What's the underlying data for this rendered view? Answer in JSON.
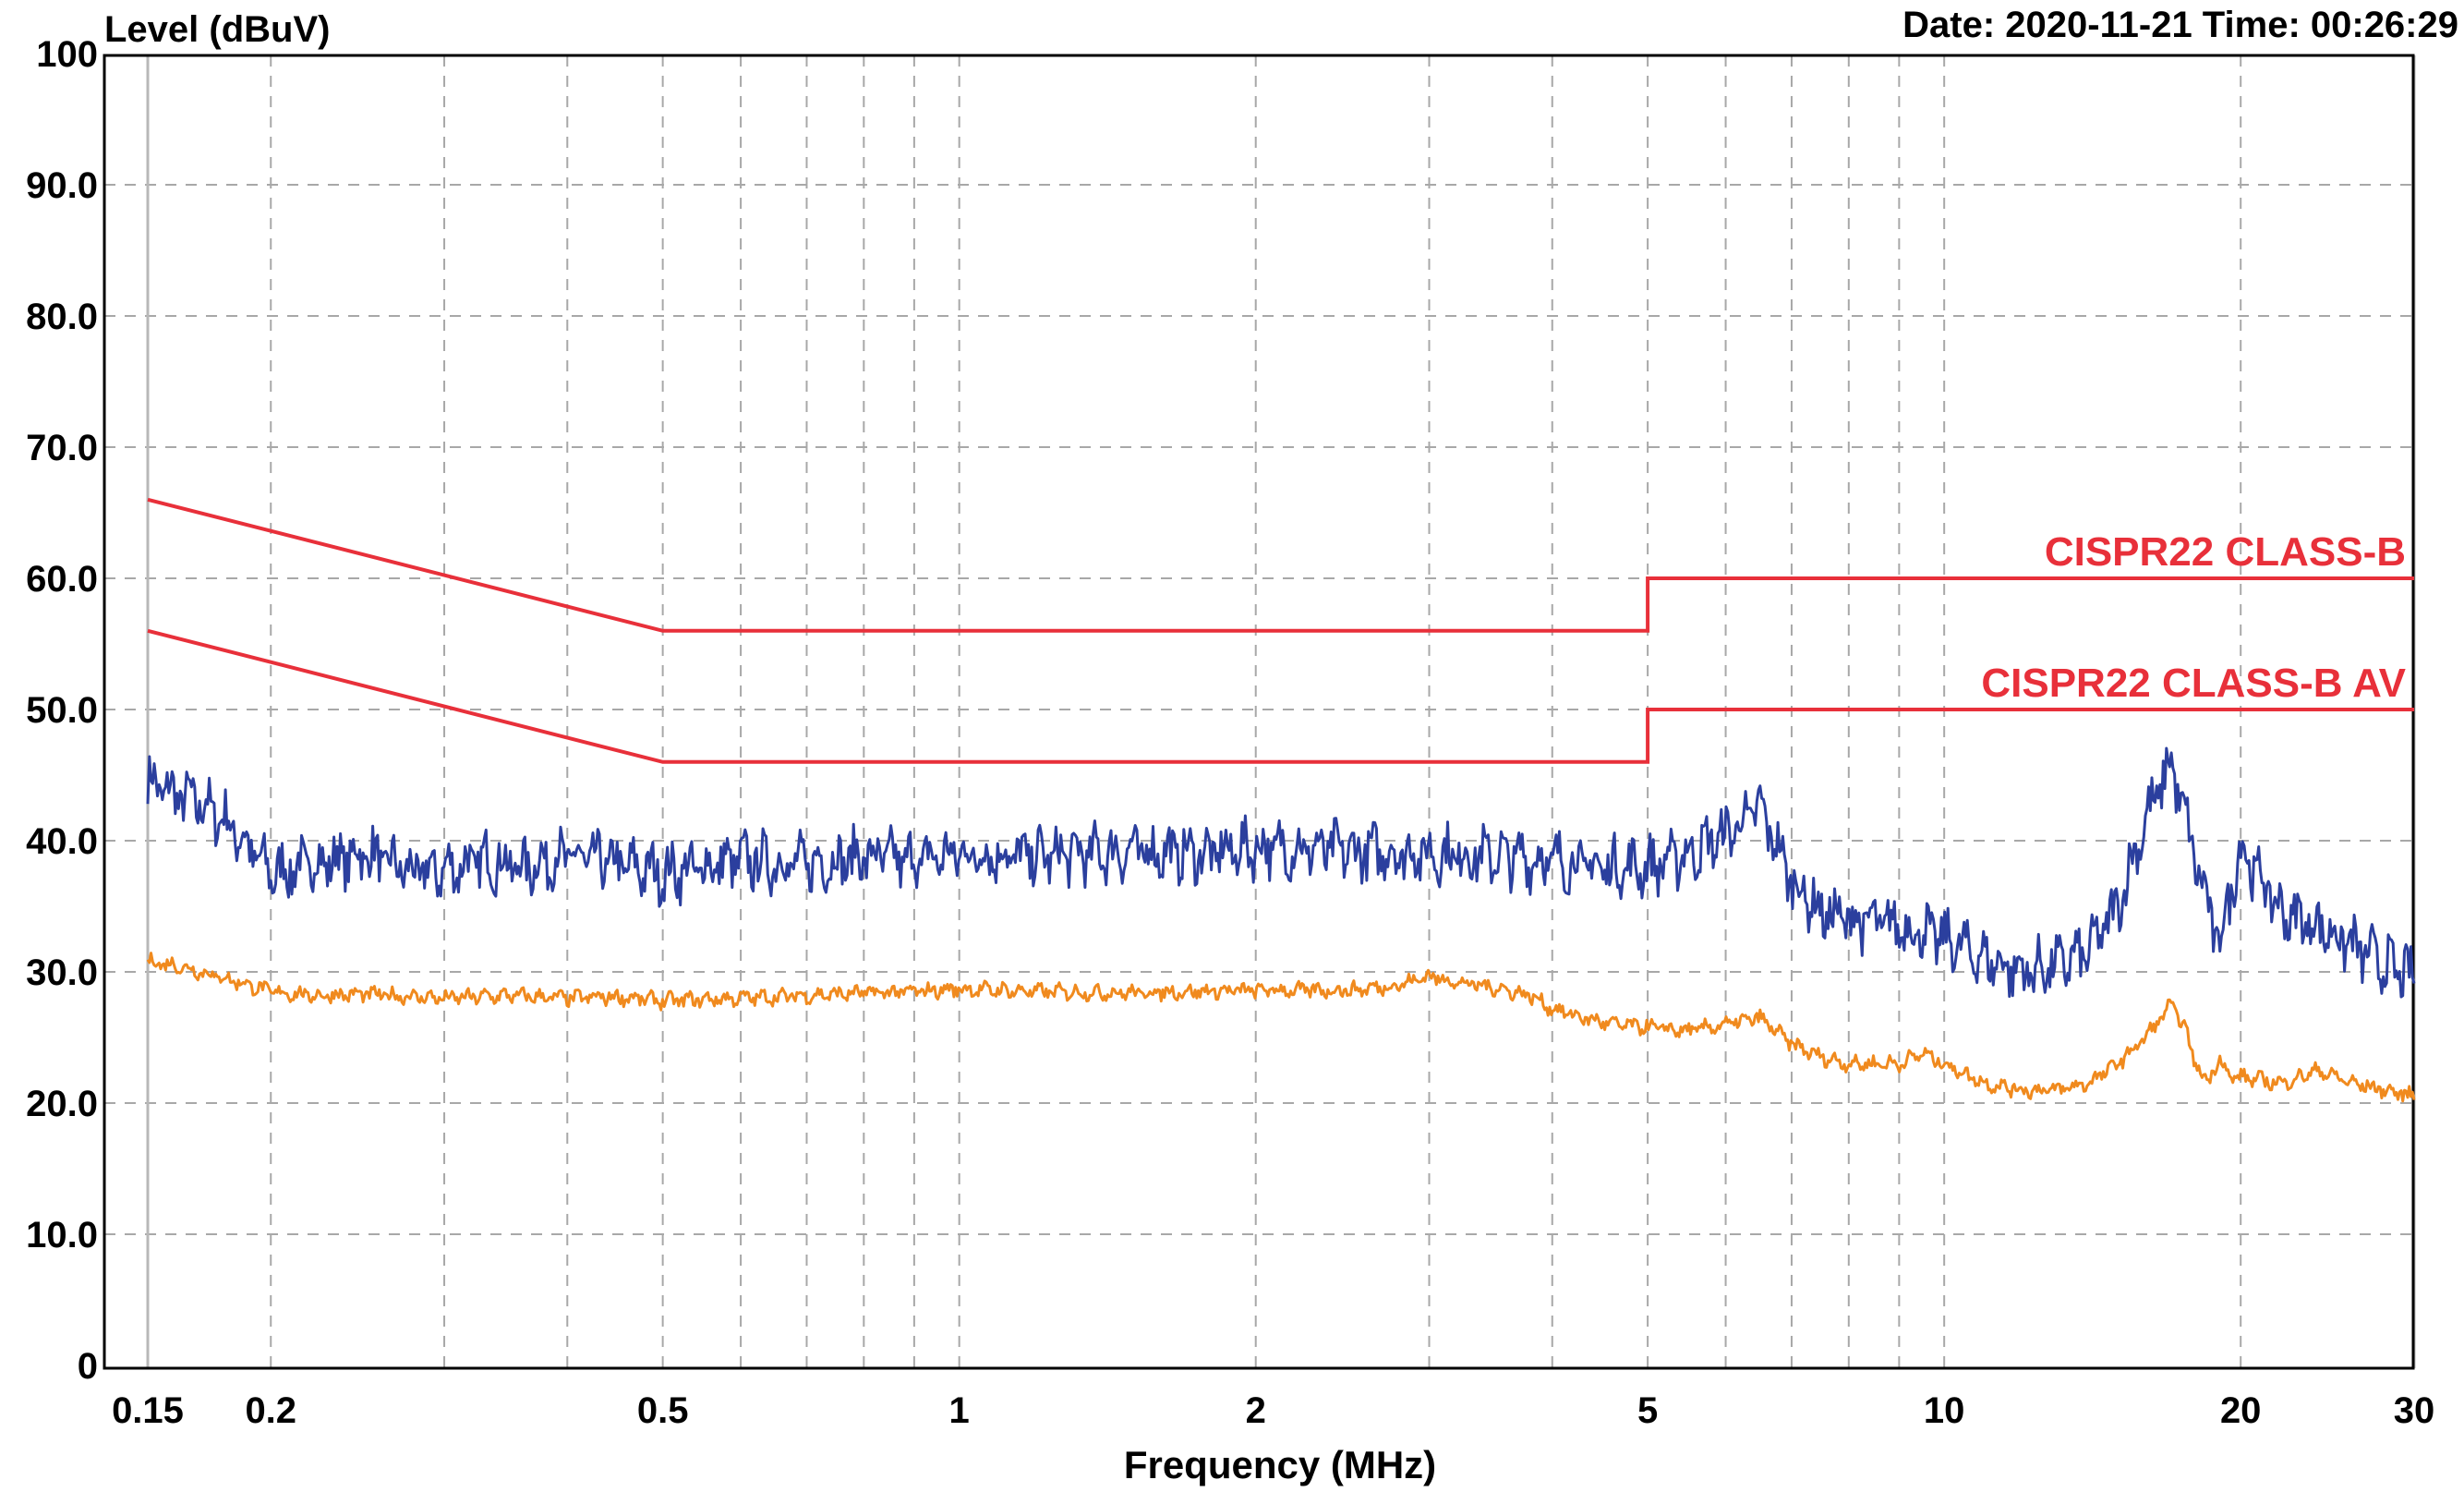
{
  "header": {
    "ylabel": "Level (dBuV)",
    "datetime": "Date: 2020-11-21  Time: 00:26:29"
  },
  "chart_data": {
    "type": "line",
    "xlabel": "Frequency (MHz)",
    "ylabel": "Level (dBuV)",
    "x_scale": "log",
    "xlim": [
      0.15,
      30
    ],
    "ylim": [
      0,
      100
    ],
    "grid": true,
    "colors": {
      "limits": "#e8303a",
      "peak": "#2b3f9e",
      "average": "#f08a1e"
    },
    "x_ticks": [
      {
        "value": 0.15,
        "label": "0.15"
      },
      {
        "value": 0.2,
        "label": "0.2"
      },
      {
        "value": 0.5,
        "label": "0.5"
      },
      {
        "value": 1,
        "label": "1"
      },
      {
        "value": 2,
        "label": "2"
      },
      {
        "value": 5,
        "label": "5"
      },
      {
        "value": 10,
        "label": "10"
      },
      {
        "value": 20,
        "label": "20"
      },
      {
        "value": 30,
        "label": "30"
      }
    ],
    "y_ticks": [
      {
        "value": 0,
        "label": "0"
      },
      {
        "value": 10,
        "label": "10.0"
      },
      {
        "value": 20,
        "label": "20.0"
      },
      {
        "value": 30,
        "label": "30.0"
      },
      {
        "value": 40,
        "label": "40.0"
      },
      {
        "value": 50,
        "label": "50.0"
      },
      {
        "value": 60,
        "label": "60.0"
      },
      {
        "value": 70,
        "label": "70.0"
      },
      {
        "value": 80,
        "label": "80.0"
      },
      {
        "value": 90,
        "label": "90.0"
      },
      {
        "value": 100,
        "label": "100"
      }
    ],
    "limit_lines": [
      {
        "name": "CISPR22 CLASS-B",
        "x": [
          0.15,
          0.5,
          5,
          5,
          30
        ],
        "y": [
          66,
          56,
          56,
          60,
          60
        ]
      },
      {
        "name": "CISPR22 CLASS-B AV",
        "x": [
          0.15,
          0.5,
          5,
          5,
          30
        ],
        "y": [
          56,
          46,
          46,
          50,
          50
        ]
      }
    ],
    "series": [
      {
        "x": [
          0.15,
          0.16,
          0.17,
          0.18,
          0.19,
          0.2,
          0.22,
          0.25,
          0.28,
          0.3,
          0.33,
          0.36,
          0.4,
          0.45,
          0.5,
          0.55,
          0.6,
          0.7,
          0.8,
          0.9,
          1.0,
          1.2,
          1.5,
          1.8,
          2.0,
          2.5,
          3.0,
          3.5,
          4.0,
          4.5,
          5.0,
          5.5,
          6.0,
          6.5,
          7.0,
          7.5,
          8.0,
          9.0,
          10.0,
          11.0,
          12.0,
          13.0,
          14.0,
          15.0,
          16.0,
          17.0,
          18.0,
          19.0,
          20.0,
          22.0,
          24.0,
          26.0,
          28.0,
          30.0
        ],
        "values": [
          44.5,
          43.5,
          42.8,
          41.5,
          39.5,
          37.5,
          38.2,
          39.0,
          37.5,
          37.8,
          38.5,
          38.0,
          38.8,
          38.2,
          37.5,
          38.0,
          38.5,
          38.2,
          38.8,
          38.5,
          39.0,
          38.8,
          39.2,
          39.0,
          39.5,
          39.2,
          39.0,
          38.8,
          38.5,
          38.0,
          38.0,
          39.0,
          40.5,
          42.5,
          37.0,
          34.5,
          34.0,
          33.5,
          32.5,
          31.0,
          30.0,
          30.5,
          31.5,
          35.0,
          41.5,
          46.0,
          38.5,
          32.0,
          39.5,
          34.5,
          33.5,
          32.0,
          30.5,
          29.5
        ]
      },
      {
        "x": [
          0.15,
          0.16,
          0.17,
          0.18,
          0.19,
          0.2,
          0.22,
          0.25,
          0.3,
          0.35,
          0.4,
          0.45,
          0.5,
          0.6,
          0.7,
          0.8,
          0.9,
          1.0,
          1.2,
          1.5,
          2.0,
          2.5,
          2.8,
          3.0,
          3.2,
          3.5,
          3.8,
          4.0,
          4.3,
          4.6,
          5.0,
          5.5,
          6.0,
          6.5,
          7.0,
          7.5,
          8.0,
          9.0,
          9.5,
          10.0,
          11.0,
          12.0,
          13.0,
          14.0,
          15.0,
          16.0,
          17.0,
          17.5,
          18.0,
          18.5,
          19.0,
          19.5,
          20.0,
          22.0,
          24.0,
          26.0,
          28.0,
          30.0
        ],
        "values": [
          30.8,
          30.5,
          30.0,
          29.5,
          29.0,
          28.5,
          28.2,
          28.3,
          28.0,
          28.2,
          28.0,
          28.1,
          27.8,
          28.0,
          28.2,
          28.4,
          28.5,
          28.7,
          28.5,
          28.4,
          28.6,
          28.6,
          29.0,
          29.7,
          29.2,
          28.8,
          28.2,
          27.2,
          26.5,
          26.0,
          25.8,
          25.5,
          26.0,
          26.5,
          24.5,
          23.5,
          23.0,
          23.0,
          23.8,
          23.0,
          21.5,
          21.0,
          21.0,
          21.5,
          23.0,
          25.0,
          27.5,
          26.0,
          23.0,
          21.5,
          23.5,
          22.0,
          22.0,
          21.5,
          22.5,
          21.5,
          21.0,
          20.5
        ]
      }
    ]
  }
}
